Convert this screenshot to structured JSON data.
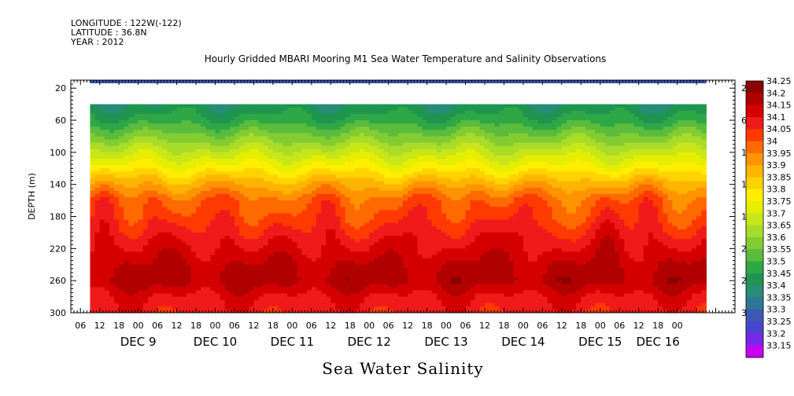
{
  "header": {
    "longitude": "LONGITUDE : 122W(-122)",
    "latitude": "LATITUDE : 36.8N",
    "year": "YEAR : 2012",
    "title": "Hourly Gridded MBARI Mooring M1 Sea Water Temperature and Salinity Observations"
  },
  "chart_data": {
    "type": "heatmap",
    "title": "Hourly Gridded MBARI Mooring M1 Sea Water Temperature and Salinity Observations",
    "xlabel": "Sea Water Salinity",
    "ylabel": "DEPTH (m)",
    "ylim": [
      300,
      10
    ],
    "y_ticks": [
      20,
      60,
      100,
      140,
      180,
      220,
      260,
      300
    ],
    "x_range_hours": [
      "DEC 8 03:00",
      "DEC 16 06:00"
    ],
    "x_hour_ticks": [
      {
        "label": "06",
        "day": 8
      },
      {
        "label": "12",
        "day": 8
      },
      {
        "label": "18",
        "day": 8
      },
      {
        "label": "00",
        "day": 9
      },
      {
        "label": "06",
        "day": 9
      },
      {
        "label": "12",
        "day": 9
      },
      {
        "label": "18",
        "day": 9
      },
      {
        "label": "00",
        "day": 10
      },
      {
        "label": "06",
        "day": 10
      },
      {
        "label": "12",
        "day": 10
      },
      {
        "label": "18",
        "day": 10
      },
      {
        "label": "00",
        "day": 11
      },
      {
        "label": "06",
        "day": 11
      },
      {
        "label": "12",
        "day": 11
      },
      {
        "label": "18",
        "day": 11
      },
      {
        "label": "00",
        "day": 12
      },
      {
        "label": "06",
        "day": 12
      },
      {
        "label": "12",
        "day": 12
      },
      {
        "label": "18",
        "day": 12
      },
      {
        "label": "00",
        "day": 13
      },
      {
        "label": "06",
        "day": 13
      },
      {
        "label": "12",
        "day": 13
      },
      {
        "label": "18",
        "day": 13
      },
      {
        "label": "00",
        "day": 14
      },
      {
        "label": "06",
        "day": 14
      },
      {
        "label": "12",
        "day": 14
      },
      {
        "label": "18",
        "day": 14
      },
      {
        "label": "00",
        "day": 15
      },
      {
        "label": "06",
        "day": 15
      },
      {
        "label": "12",
        "day": 15
      },
      {
        "label": "18",
        "day": 15
      },
      {
        "label": "00",
        "day": 16
      }
    ],
    "day_labels": [
      {
        "text": "DEC  9",
        "hour": 12
      },
      {
        "text": "DEC 10",
        "hour": 36
      },
      {
        "text": "DEC 11",
        "hour": 60
      },
      {
        "text": "DEC 12",
        "hour": 84
      },
      {
        "text": "DEC 13",
        "hour": 108
      },
      {
        "text": "DEC 14",
        "hour": 132
      },
      {
        "text": "DEC 15",
        "hour": 156
      },
      {
        "text": "DEC 16",
        "hour": 174
      }
    ],
    "data_start_hour": 6,
    "data_end_hour": 198,
    "surface_band": {
      "depth_top": 10,
      "depth_bottom": 14,
      "value": 33.3
    },
    "missing_band": {
      "depth_top": 14,
      "depth_bottom": 40
    },
    "depth_profile": [
      {
        "depth": 40,
        "value": 33.45
      },
      {
        "depth": 60,
        "value": 33.52
      },
      {
        "depth": 80,
        "value": 33.62
      },
      {
        "depth": 100,
        "value": 33.72
      },
      {
        "depth": 120,
        "value": 33.82
      },
      {
        "depth": 140,
        "value": 33.93
      },
      {
        "depth": 160,
        "value": 34.02
      },
      {
        "depth": 180,
        "value": 34.05
      },
      {
        "depth": 200,
        "value": 34.1
      },
      {
        "depth": 220,
        "value": 34.15
      },
      {
        "depth": 240,
        "value": 34.2
      },
      {
        "depth": 260,
        "value": 34.22
      },
      {
        "depth": 280,
        "value": 34.15
      },
      {
        "depth": 300,
        "value": 34.12
      }
    ],
    "upwelling_events_hour": [
      4,
      18,
      42,
      72,
      96,
      114,
      128,
      154,
      166
    ],
    "colorbar": {
      "levels": [
        "34.25",
        "34.2",
        "34.15",
        "34.1",
        "34.05",
        "34",
        "33.95",
        "33.9",
        "33.85",
        "33.8",
        "33.75",
        "33.7",
        "33.65",
        "33.6",
        "33.55",
        "33.5",
        "33.45",
        "33.4",
        "33.35",
        "33.3",
        "33.25",
        "33.2",
        "33.15"
      ],
      "colors": [
        "#8b0000",
        "#b00000",
        "#d40000",
        "#f01a1a",
        "#ff3a00",
        "#ff6a00",
        "#ff9400",
        "#ffb400",
        "#ffd200",
        "#ffee00",
        "#e6ee00",
        "#c8e619",
        "#a8dc28",
        "#82cc32",
        "#5abb3c",
        "#2ea846",
        "#1e9650",
        "#288c78",
        "#2d7896",
        "#3c5ab4",
        "#4646d2",
        "#7828e6",
        "#c800f0"
      ]
    }
  }
}
